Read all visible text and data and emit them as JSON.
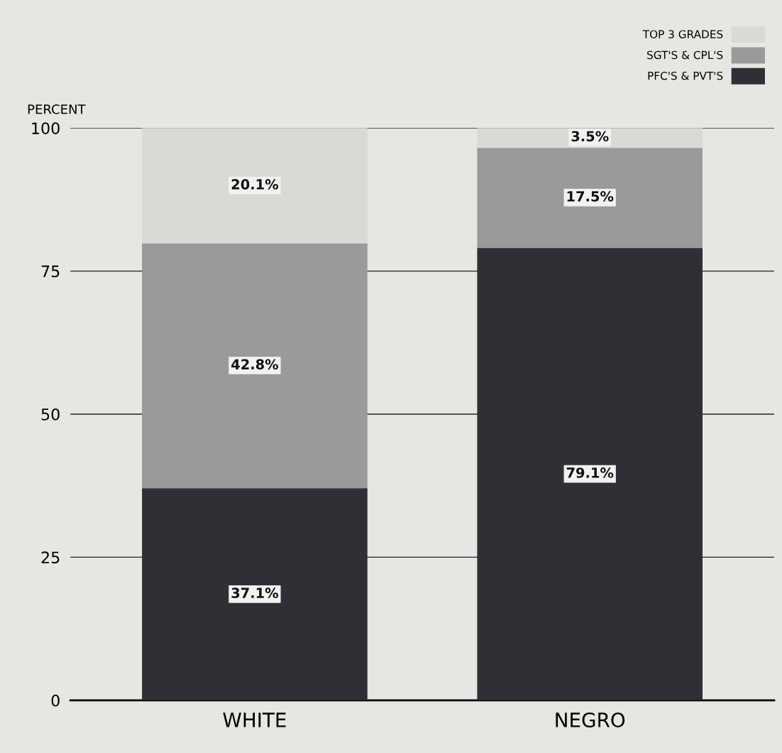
{
  "chart_data": {
    "type": "bar",
    "stacked": true,
    "ylabel": "PERCENT",
    "categories": [
      "WHITE",
      "NEGRO"
    ],
    "series": [
      {
        "name": "PFC'S & PVT'S",
        "color": "#2f2f35",
        "values": [
          37.1,
          79.1
        ],
        "value_labels": [
          "37.1%",
          "79.1%"
        ]
      },
      {
        "name": "SGT'S & CPL'S",
        "color": "#9a9a9a",
        "values": [
          42.8,
          17.5
        ],
        "value_labels": [
          "42.8%",
          "17.5%"
        ]
      },
      {
        "name": "TOP 3 GRADES",
        "color": "#d9d9d6",
        "values": [
          20.1,
          3.5
        ],
        "value_labels": [
          "20.1%",
          "3.5%"
        ]
      }
    ],
    "ylim": [
      0,
      100
    ],
    "yticks": [
      0,
      25,
      50,
      75,
      100
    ],
    "grid": "y",
    "legend": "top right"
  }
}
